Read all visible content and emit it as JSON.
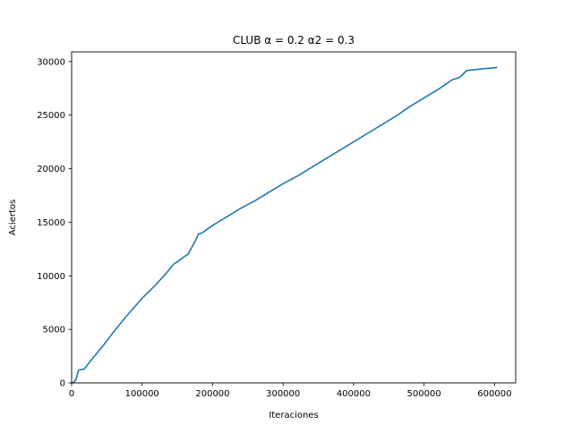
{
  "chart_data": {
    "type": "line",
    "title": "CLUB α =  0.2 α2 = 0.3",
    "xlabel": "Iteraciones",
    "ylabel": "Aciertos",
    "xlim": [
      0,
      630000
    ],
    "ylim": [
      0,
      30900
    ],
    "xticks": [
      0,
      100000,
      200000,
      300000,
      400000,
      500000,
      600000
    ],
    "yticks": [
      0,
      5000,
      10000,
      15000,
      20000,
      25000,
      30000
    ],
    "grid": false,
    "line_color": "#1f77b4",
    "series": [
      {
        "x": [
          0,
          3000,
          6000,
          10000,
          14000,
          18000,
          25000,
          35000,
          45000,
          60000,
          80000,
          100000,
          120000,
          135000,
          145000,
          150000,
          160000,
          165000,
          175000,
          180000,
          185000,
          200000,
          220000,
          240000,
          260000,
          280000,
          300000,
          320000,
          340000,
          360000,
          380000,
          400000,
          420000,
          440000,
          460000,
          480000,
          500000,
          520000,
          540000,
          550000,
          555000,
          560000,
          580000,
          600000,
          603000
        ],
        "y": [
          0,
          50,
          300,
          1200,
          1250,
          1300,
          1900,
          2700,
          3500,
          4800,
          6400,
          7900,
          9200,
          10300,
          11100,
          11300,
          11800,
          12000,
          13200,
          13900,
          14000,
          14700,
          15500,
          16300,
          17000,
          17800,
          18600,
          19300,
          20100,
          20900,
          21700,
          22500,
          23300,
          24100,
          24900,
          25800,
          26600,
          27400,
          28300,
          28500,
          28800,
          29150,
          29300,
          29420,
          29450
        ]
      }
    ]
  }
}
